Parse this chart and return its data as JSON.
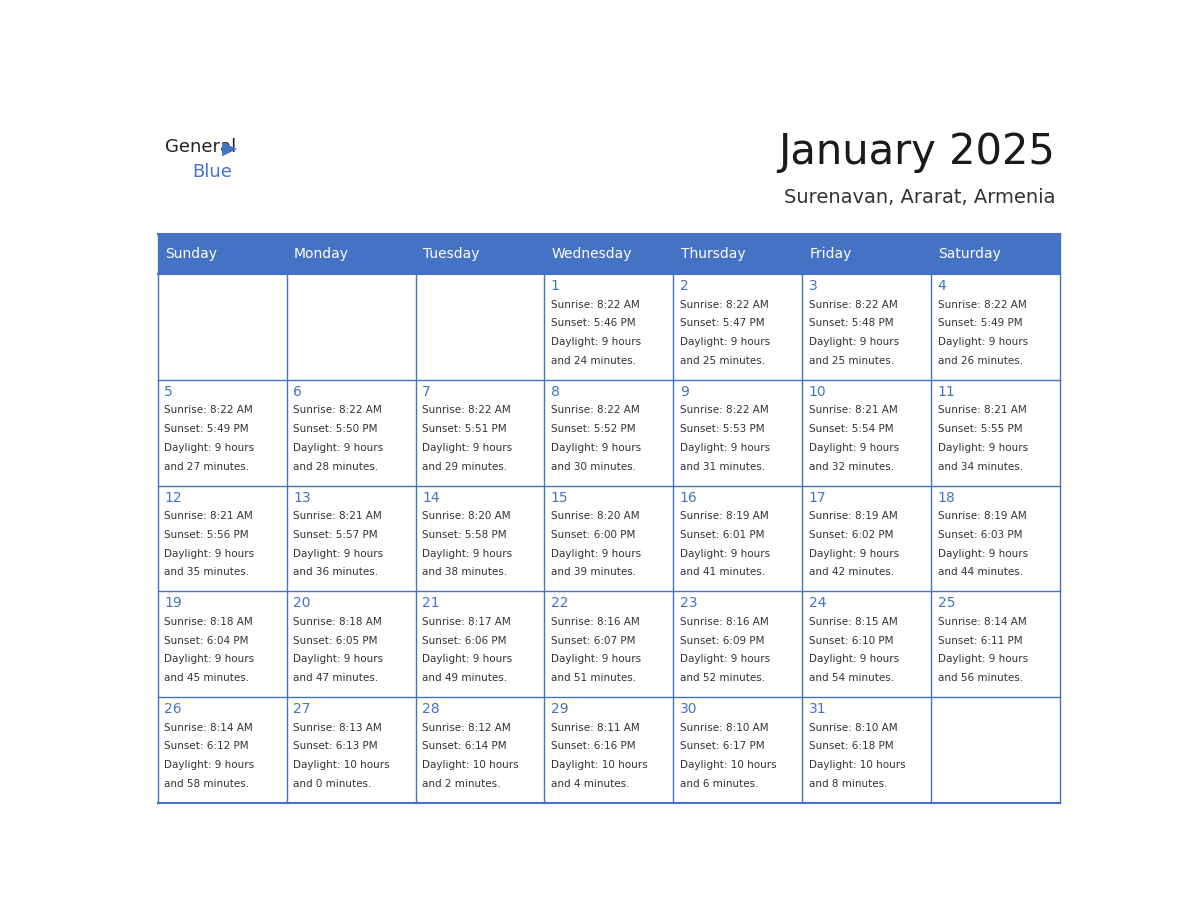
{
  "title": "January 2025",
  "subtitle": "Surenavan, Ararat, Armenia",
  "header_color": "#4472C4",
  "header_text_color": "#FFFFFF",
  "cell_bg_color": "#FFFFFF",
  "grid_color": "#4472C4",
  "days_of_week": [
    "Sunday",
    "Monday",
    "Tuesday",
    "Wednesday",
    "Thursday",
    "Friday",
    "Saturday"
  ],
  "weeks": [
    [
      {
        "day": "",
        "info": ""
      },
      {
        "day": "",
        "info": ""
      },
      {
        "day": "",
        "info": ""
      },
      {
        "day": "1",
        "info": "Sunrise: 8:22 AM\nSunset: 5:46 PM\nDaylight: 9 hours\nand 24 minutes."
      },
      {
        "day": "2",
        "info": "Sunrise: 8:22 AM\nSunset: 5:47 PM\nDaylight: 9 hours\nand 25 minutes."
      },
      {
        "day": "3",
        "info": "Sunrise: 8:22 AM\nSunset: 5:48 PM\nDaylight: 9 hours\nand 25 minutes."
      },
      {
        "day": "4",
        "info": "Sunrise: 8:22 AM\nSunset: 5:49 PM\nDaylight: 9 hours\nand 26 minutes."
      }
    ],
    [
      {
        "day": "5",
        "info": "Sunrise: 8:22 AM\nSunset: 5:49 PM\nDaylight: 9 hours\nand 27 minutes."
      },
      {
        "day": "6",
        "info": "Sunrise: 8:22 AM\nSunset: 5:50 PM\nDaylight: 9 hours\nand 28 minutes."
      },
      {
        "day": "7",
        "info": "Sunrise: 8:22 AM\nSunset: 5:51 PM\nDaylight: 9 hours\nand 29 minutes."
      },
      {
        "day": "8",
        "info": "Sunrise: 8:22 AM\nSunset: 5:52 PM\nDaylight: 9 hours\nand 30 minutes."
      },
      {
        "day": "9",
        "info": "Sunrise: 8:22 AM\nSunset: 5:53 PM\nDaylight: 9 hours\nand 31 minutes."
      },
      {
        "day": "10",
        "info": "Sunrise: 8:21 AM\nSunset: 5:54 PM\nDaylight: 9 hours\nand 32 minutes."
      },
      {
        "day": "11",
        "info": "Sunrise: 8:21 AM\nSunset: 5:55 PM\nDaylight: 9 hours\nand 34 minutes."
      }
    ],
    [
      {
        "day": "12",
        "info": "Sunrise: 8:21 AM\nSunset: 5:56 PM\nDaylight: 9 hours\nand 35 minutes."
      },
      {
        "day": "13",
        "info": "Sunrise: 8:21 AM\nSunset: 5:57 PM\nDaylight: 9 hours\nand 36 minutes."
      },
      {
        "day": "14",
        "info": "Sunrise: 8:20 AM\nSunset: 5:58 PM\nDaylight: 9 hours\nand 38 minutes."
      },
      {
        "day": "15",
        "info": "Sunrise: 8:20 AM\nSunset: 6:00 PM\nDaylight: 9 hours\nand 39 minutes."
      },
      {
        "day": "16",
        "info": "Sunrise: 8:19 AM\nSunset: 6:01 PM\nDaylight: 9 hours\nand 41 minutes."
      },
      {
        "day": "17",
        "info": "Sunrise: 8:19 AM\nSunset: 6:02 PM\nDaylight: 9 hours\nand 42 minutes."
      },
      {
        "day": "18",
        "info": "Sunrise: 8:19 AM\nSunset: 6:03 PM\nDaylight: 9 hours\nand 44 minutes."
      }
    ],
    [
      {
        "day": "19",
        "info": "Sunrise: 8:18 AM\nSunset: 6:04 PM\nDaylight: 9 hours\nand 45 minutes."
      },
      {
        "day": "20",
        "info": "Sunrise: 8:18 AM\nSunset: 6:05 PM\nDaylight: 9 hours\nand 47 minutes."
      },
      {
        "day": "21",
        "info": "Sunrise: 8:17 AM\nSunset: 6:06 PM\nDaylight: 9 hours\nand 49 minutes."
      },
      {
        "day": "22",
        "info": "Sunrise: 8:16 AM\nSunset: 6:07 PM\nDaylight: 9 hours\nand 51 minutes."
      },
      {
        "day": "23",
        "info": "Sunrise: 8:16 AM\nSunset: 6:09 PM\nDaylight: 9 hours\nand 52 minutes."
      },
      {
        "day": "24",
        "info": "Sunrise: 8:15 AM\nSunset: 6:10 PM\nDaylight: 9 hours\nand 54 minutes."
      },
      {
        "day": "25",
        "info": "Sunrise: 8:14 AM\nSunset: 6:11 PM\nDaylight: 9 hours\nand 56 minutes."
      }
    ],
    [
      {
        "day": "26",
        "info": "Sunrise: 8:14 AM\nSunset: 6:12 PM\nDaylight: 9 hours\nand 58 minutes."
      },
      {
        "day": "27",
        "info": "Sunrise: 8:13 AM\nSunset: 6:13 PM\nDaylight: 10 hours\nand 0 minutes."
      },
      {
        "day": "28",
        "info": "Sunrise: 8:12 AM\nSunset: 6:14 PM\nDaylight: 10 hours\nand 2 minutes."
      },
      {
        "day": "29",
        "info": "Sunrise: 8:11 AM\nSunset: 6:16 PM\nDaylight: 10 hours\nand 4 minutes."
      },
      {
        "day": "30",
        "info": "Sunrise: 8:10 AM\nSunset: 6:17 PM\nDaylight: 10 hours\nand 6 minutes."
      },
      {
        "day": "31",
        "info": "Sunrise: 8:10 AM\nSunset: 6:18 PM\nDaylight: 10 hours\nand 8 minutes."
      },
      {
        "day": "",
        "info": ""
      }
    ]
  ]
}
